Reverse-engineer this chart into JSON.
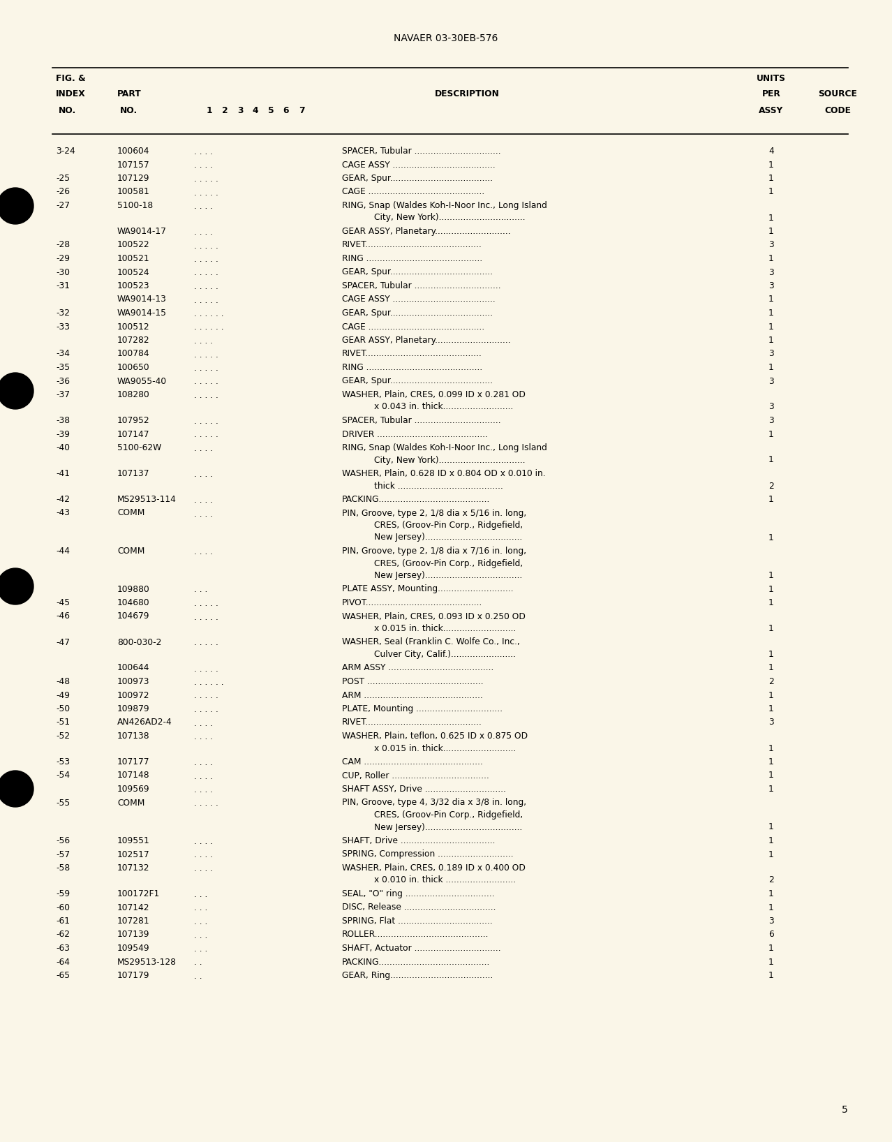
{
  "bg_color": "#faf6e8",
  "header_title": "NAVAER 03-30EB-576",
  "page_number": "5",
  "rows": [
    {
      "fig": "3-24",
      "part": "100604",
      "dots": ". . . .",
      "desc_lines": [
        "SPACER, Tubular ................................"
      ],
      "qty": "4"
    },
    {
      "fig": "",
      "part": "107157",
      "dots": ". . . .",
      "desc_lines": [
        "CAGE ASSY ......................................"
      ],
      "qty": "1"
    },
    {
      "fig": "-25",
      "part": "107129",
      "dots": ". . . . .",
      "desc_lines": [
        "GEAR, Spur......................................"
      ],
      "qty": "1"
    },
    {
      "fig": "-26",
      "part": "100581",
      "dots": ". . . . .",
      "desc_lines": [
        "CAGE ..........................................."
      ],
      "qty": "1"
    },
    {
      "fig": "-27",
      "part": "5100-18",
      "dots": ". . . .",
      "desc_lines": [
        "RING, Snap (Waldes Koh-I-Noor Inc., Long Island",
        "        City, New York)................................"
      ],
      "qty": "1"
    },
    {
      "fig": "",
      "part": "WA9014-17",
      "dots": ". . . .",
      "desc_lines": [
        "GEAR ASSY, Planetary............................"
      ],
      "qty": "1"
    },
    {
      "fig": "-28",
      "part": "100522",
      "dots": ". . . . .",
      "desc_lines": [
        "RIVET..........................................."
      ],
      "qty": "3"
    },
    {
      "fig": "-29",
      "part": "100521",
      "dots": ". . . . .",
      "desc_lines": [
        "RING ..........................................."
      ],
      "qty": "1"
    },
    {
      "fig": "-30",
      "part": "100524",
      "dots": ". . . . .",
      "desc_lines": [
        "GEAR, Spur......................................"
      ],
      "qty": "3"
    },
    {
      "fig": "-31",
      "part": "100523",
      "dots": ". . . . .",
      "desc_lines": [
        "SPACER, Tubular ................................"
      ],
      "qty": "3"
    },
    {
      "fig": "",
      "part": "WA9014-13",
      "dots": ". . . . .",
      "desc_lines": [
        "CAGE ASSY ......................................"
      ],
      "qty": "1"
    },
    {
      "fig": "-32",
      "part": "WA9014-15",
      "dots": ". . . . . .",
      "desc_lines": [
        "GEAR, Spur......................................"
      ],
      "qty": "1"
    },
    {
      "fig": "-33",
      "part": "100512",
      "dots": ". . . . . .",
      "desc_lines": [
        "CAGE ..........................................."
      ],
      "qty": "1"
    },
    {
      "fig": "",
      "part": "107282",
      "dots": ". . . .",
      "desc_lines": [
        "GEAR ASSY, Planetary............................"
      ],
      "qty": "1"
    },
    {
      "fig": "-34",
      "part": "100784",
      "dots": ". . . . .",
      "desc_lines": [
        "RIVET..........................................."
      ],
      "qty": "3"
    },
    {
      "fig": "-35",
      "part": "100650",
      "dots": ". . . . .",
      "desc_lines": [
        "RING ..........................................."
      ],
      "qty": "1"
    },
    {
      "fig": "-36",
      "part": "WA9055-40",
      "dots": ". . . . .",
      "desc_lines": [
        "GEAR, Spur......................................"
      ],
      "qty": "3"
    },
    {
      "fig": "-37",
      "part": "108280",
      "dots": ". . . . .",
      "desc_lines": [
        "WASHER, Plain, CRES, 0.099 ID x 0.281 OD",
        "        x 0.043 in. thick.........................."
      ],
      "qty": "3"
    },
    {
      "fig": "-38",
      "part": "107952",
      "dots": ". . . . .",
      "desc_lines": [
        "SPACER, Tubular ................................"
      ],
      "qty": "3"
    },
    {
      "fig": "-39",
      "part": "107147",
      "dots": ". . . . .",
      "desc_lines": [
        "DRIVER ........................................."
      ],
      "qty": "1"
    },
    {
      "fig": "-40",
      "part": "5100-62W",
      "dots": ". . . .",
      "desc_lines": [
        "RING, Snap (Waldes Koh-I-Noor Inc., Long Island",
        "        City, New York)................................"
      ],
      "qty": "1"
    },
    {
      "fig": "-41",
      "part": "107137",
      "dots": ". . . .",
      "desc_lines": [
        "WASHER, Plain, 0.628 ID x 0.804 OD x 0.010 in.",
        "        thick ......................................."
      ],
      "qty": "2"
    },
    {
      "fig": "-42",
      "part": "MS29513-114",
      "dots": ". . . .",
      "desc_lines": [
        "PACKING........................................."
      ],
      "qty": "1"
    },
    {
      "fig": "-43",
      "part": "COMM",
      "dots": ". . . .",
      "desc_lines": [
        "PIN, Groove, type 2, 1/8 dia x 5/16 in. long,",
        "        CRES, (Groov-Pin Corp., Ridgefield,",
        "        New Jersey)...................................."
      ],
      "qty": "1"
    },
    {
      "fig": "-44",
      "part": "COMM",
      "dots": ". . . .",
      "desc_lines": [
        "PIN, Groove, type 2, 1/8 dia x 7/16 in. long,",
        "        CRES, (Groov-Pin Corp., Ridgefield,",
        "        New Jersey)...................................."
      ],
      "qty": "1"
    },
    {
      "fig": "",
      "part": "109880",
      "dots": ". . .",
      "desc_lines": [
        "PLATE ASSY, Mounting............................"
      ],
      "qty": "1"
    },
    {
      "fig": "-45",
      "part": "104680",
      "dots": ". . . . .",
      "desc_lines": [
        "PIVOT..........................................."
      ],
      "qty": "1"
    },
    {
      "fig": "-46",
      "part": "104679",
      "dots": ". . . . .",
      "desc_lines": [
        "WASHER, Plain, CRES, 0.093 ID x 0.250 OD",
        "        x 0.015 in. thick..........................."
      ],
      "qty": "1"
    },
    {
      "fig": "-47",
      "part": "800-030-2",
      "dots": ". . . . .",
      "desc_lines": [
        "WASHER, Seal (Franklin C. Wolfe Co., Inc.,",
        "        Culver City, Calif.)........................"
      ],
      "qty": "1"
    },
    {
      "fig": "",
      "part": "100644",
      "dots": ". . . . .",
      "desc_lines": [
        "ARM ASSY ......................................."
      ],
      "qty": "1"
    },
    {
      "fig": "-48",
      "part": "100973",
      "dots": ". . . . . .",
      "desc_lines": [
        "POST ..........................................."
      ],
      "qty": "2"
    },
    {
      "fig": "-49",
      "part": "100972",
      "dots": ". . . . .",
      "desc_lines": [
        "ARM ............................................"
      ],
      "qty": "1"
    },
    {
      "fig": "-50",
      "part": "109879",
      "dots": ". . . . .",
      "desc_lines": [
        "PLATE, Mounting ................................"
      ],
      "qty": "1"
    },
    {
      "fig": "-51",
      "part": "AN426AD2-4",
      "dots": ". . . .",
      "desc_lines": [
        "RIVET..........................................."
      ],
      "qty": "3"
    },
    {
      "fig": "-52",
      "part": "107138",
      "dots": ". . . .",
      "desc_lines": [
        "WASHER, Plain, teflon, 0.625 ID x 0.875 OD",
        "        x 0.015 in. thick..........................."
      ],
      "qty": "1"
    },
    {
      "fig": "-53",
      "part": "107177",
      "dots": ". . . .",
      "desc_lines": [
        "CAM ............................................"
      ],
      "qty": "1"
    },
    {
      "fig": "-54",
      "part": "107148",
      "dots": ". . . .",
      "desc_lines": [
        "CUP, Roller ...................................."
      ],
      "qty": "1"
    },
    {
      "fig": "",
      "part": "109569",
      "dots": ". . . .",
      "desc_lines": [
        "SHAFT ASSY, Drive .............................."
      ],
      "qty": "1"
    },
    {
      "fig": "-55",
      "part": "COMM",
      "dots": ". . . . .",
      "desc_lines": [
        "PIN, Groove, type 4, 3/32 dia x 3/8 in. long,",
        "        CRES, (Groov-Pin Corp., Ridgefield,",
        "        New Jersey)...................................."
      ],
      "qty": "1"
    },
    {
      "fig": "-56",
      "part": "109551",
      "dots": ". . . .",
      "desc_lines": [
        "SHAFT, Drive ..................................."
      ],
      "qty": "1"
    },
    {
      "fig": "-57",
      "part": "102517",
      "dots": ". . . .",
      "desc_lines": [
        "SPRING, Compression ............................"
      ],
      "qty": "1"
    },
    {
      "fig": "-58",
      "part": "107132",
      "dots": ". . . .",
      "desc_lines": [
        "WASHER, Plain, CRES, 0.189 ID x 0.400 OD",
        "        x 0.010 in. thick .........................."
      ],
      "qty": "2"
    },
    {
      "fig": "-59",
      "part": "100172F1",
      "dots": ". . .",
      "desc_lines": [
        "SEAL, \"O\" ring ................................."
      ],
      "qty": "1"
    },
    {
      "fig": "-60",
      "part": "107142",
      "dots": ". . .",
      "desc_lines": [
        "DISC, Release .................................."
      ],
      "qty": "1"
    },
    {
      "fig": "-61",
      "part": "107281",
      "dots": ". . .",
      "desc_lines": [
        "SPRING, Flat ..................................."
      ],
      "qty": "3"
    },
    {
      "fig": "-62",
      "part": "107139",
      "dots": ". . .",
      "desc_lines": [
        "ROLLER.........................................."
      ],
      "qty": "6"
    },
    {
      "fig": "-63",
      "part": "109549",
      "dots": ". . .",
      "desc_lines": [
        "SHAFT, Actuator ................................"
      ],
      "qty": "1"
    },
    {
      "fig": "-64",
      "part": "MS29513-128",
      "dots": ". .",
      "desc_lines": [
        "PACKING........................................."
      ],
      "qty": "1"
    },
    {
      "fig": "-65",
      "part": "107179",
      "dots": ". .",
      "desc_lines": [
        "GEAR, Ring......................................"
      ],
      "qty": "1"
    }
  ]
}
